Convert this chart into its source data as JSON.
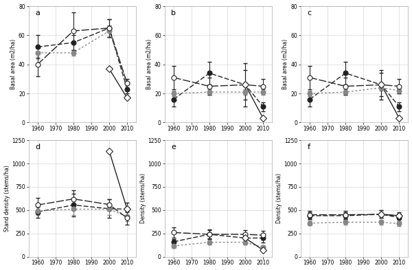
{
  "subplots": [
    {
      "label": "a",
      "ylabel": "Basal area (m2/ha)",
      "ylim": [
        0,
        80
      ],
      "yticks": [
        0,
        20,
        40,
        60,
        80
      ],
      "series": [
        {
          "name": "black_filled",
          "x": [
            1960,
            1980,
            2000,
            2010
          ],
          "y": [
            52,
            55,
            65,
            23
          ],
          "yerr_lo": [
            8,
            5,
            6,
            3
          ],
          "yerr_hi": [
            8,
            5,
            6,
            3
          ],
          "color": "#222222",
          "marker": "o",
          "mfc": "#222222",
          "dashes": [
            5,
            2
          ]
        },
        {
          "name": "gray_filled",
          "x": [
            1960,
            1980,
            2000,
            2010
          ],
          "y": [
            48,
            48,
            63,
            27
          ],
          "yerr_lo": [
            3,
            2,
            4,
            3
          ],
          "yerr_hi": [
            3,
            2,
            4,
            3
          ],
          "color": "#888888",
          "marker": "o",
          "mfc": "#888888",
          "dashes": [
            2,
            2
          ]
        },
        {
          "name": "black_open",
          "x": [
            1960,
            1980,
            2000,
            2010
          ],
          "y": [
            40,
            63,
            65,
            27
          ],
          "yerr_lo": [
            8,
            13,
            6,
            3
          ],
          "yerr_hi": [
            8,
            13,
            6,
            3
          ],
          "color": "#222222",
          "marker": "o",
          "mfc": "white",
          "dashes": [
            8,
            2
          ]
        },
        {
          "name": "diamond_open",
          "x": [
            2000,
            2010
          ],
          "y": [
            37,
            17
          ],
          "yerr_lo": [
            0,
            0
          ],
          "yerr_hi": [
            0,
            0
          ],
          "color": "#222222",
          "marker": "D",
          "mfc": "white",
          "dashes": [
            1,
            0
          ]
        }
      ]
    },
    {
      "label": "b",
      "ylabel": "Basal area (m2/ha)",
      "ylim": [
        0,
        80
      ],
      "yticks": [
        0,
        20,
        40,
        60,
        80
      ],
      "series": [
        {
          "name": "black_filled",
          "x": [
            1960,
            1980,
            2000,
            2010
          ],
          "y": [
            16,
            34,
            26,
            11
          ],
          "yerr_lo": [
            5,
            8,
            10,
            3
          ],
          "yerr_hi": [
            5,
            8,
            10,
            3
          ],
          "color": "#222222",
          "marker": "o",
          "mfc": "#222222",
          "dashes": [
            5,
            2
          ]
        },
        {
          "name": "gray_filled",
          "x": [
            1960,
            1980,
            2000,
            2010
          ],
          "y": [
            20,
            21,
            21,
            21
          ],
          "yerr_lo": [
            2,
            2,
            2,
            2
          ],
          "yerr_hi": [
            2,
            2,
            2,
            2
          ],
          "color": "#888888",
          "marker": "o",
          "mfc": "#888888",
          "dashes": [
            2,
            2
          ]
        },
        {
          "name": "black_open",
          "x": [
            1960,
            1980,
            2000,
            2010
          ],
          "y": [
            31,
            25,
            26,
            25
          ],
          "yerr_lo": [
            8,
            6,
            15,
            5
          ],
          "yerr_hi": [
            8,
            6,
            15,
            5
          ],
          "color": "#222222",
          "marker": "o",
          "mfc": "white",
          "dashes": [
            8,
            2
          ]
        },
        {
          "name": "diamond_open",
          "x": [
            2000,
            2010
          ],
          "y": [
            26,
            3
          ],
          "yerr_lo": [
            0,
            0
          ],
          "yerr_hi": [
            0,
            0
          ],
          "color": "#222222",
          "marker": "D",
          "mfc": "white",
          "dashes": [
            1,
            0
          ]
        }
      ]
    },
    {
      "label": "c",
      "ylabel": "Basal area (m2/ha)",
      "ylim": [
        0,
        80
      ],
      "yticks": [
        0,
        20,
        40,
        60,
        80
      ],
      "series": [
        {
          "name": "black_filled",
          "x": [
            1960,
            1980,
            2000,
            2010
          ],
          "y": [
            16,
            34,
            26,
            11
          ],
          "yerr_lo": [
            5,
            8,
            10,
            3
          ],
          "yerr_hi": [
            5,
            8,
            10,
            3
          ],
          "color": "#222222",
          "marker": "o",
          "mfc": "#222222",
          "dashes": [
            5,
            2
          ]
        },
        {
          "name": "gray_filled",
          "x": [
            1960,
            1980,
            2000,
            2010
          ],
          "y": [
            20,
            21,
            24,
            22
          ],
          "yerr_lo": [
            2,
            2,
            2,
            2
          ],
          "yerr_hi": [
            2,
            2,
            2,
            2
          ],
          "color": "#888888",
          "marker": "o",
          "mfc": "#888888",
          "dashes": [
            2,
            2
          ]
        },
        {
          "name": "black_open",
          "x": [
            1960,
            1980,
            2000,
            2010
          ],
          "y": [
            31,
            25,
            26,
            25
          ],
          "yerr_lo": [
            8,
            6,
            8,
            5
          ],
          "yerr_hi": [
            8,
            6,
            8,
            5
          ],
          "color": "#222222",
          "marker": "o",
          "mfc": "white",
          "dashes": [
            8,
            2
          ]
        },
        {
          "name": "diamond_open",
          "x": [
            2000,
            2010
          ],
          "y": [
            26,
            3
          ],
          "yerr_lo": [
            0,
            0
          ],
          "yerr_hi": [
            0,
            0
          ],
          "color": "#222222",
          "marker": "D",
          "mfc": "white",
          "dashes": [
            1,
            0
          ]
        }
      ]
    },
    {
      "label": "d",
      "ylabel": "Stand density (stems/ha)",
      "ylim": [
        0,
        1250
      ],
      "yticks": [
        0,
        250,
        500,
        750,
        1000,
        1250
      ],
      "series": [
        {
          "name": "black_filled",
          "x": [
            1960,
            1980,
            2000,
            2010
          ],
          "y": [
            480,
            555,
            515,
            510
          ],
          "yerr_lo": [
            60,
            120,
            100,
            70
          ],
          "yerr_hi": [
            60,
            120,
            100,
            70
          ],
          "color": "#222222",
          "marker": "o",
          "mfc": "#222222",
          "dashes": [
            5,
            2
          ]
        },
        {
          "name": "gray_filled",
          "x": [
            1960,
            1980,
            2000,
            2010
          ],
          "y": [
            490,
            510,
            510,
            430
          ],
          "yerr_lo": [
            40,
            60,
            60,
            50
          ],
          "yerr_hi": [
            40,
            60,
            60,
            50
          ],
          "color": "#888888",
          "marker": "o",
          "mfc": "#888888",
          "dashes": [
            2,
            2
          ]
        },
        {
          "name": "black_open",
          "x": [
            1960,
            1980,
            2000,
            2010
          ],
          "y": [
            555,
            620,
            560,
            415
          ],
          "yerr_lo": [
            80,
            90,
            60,
            70
          ],
          "yerr_hi": [
            80,
            90,
            60,
            70
          ],
          "color": "#222222",
          "marker": "o",
          "mfc": "white",
          "dashes": [
            8,
            2
          ]
        },
        {
          "name": "diamond_open",
          "x": [
            2000,
            2010
          ],
          "y": [
            1135,
            510
          ],
          "yerr_lo": [
            0,
            0
          ],
          "yerr_hi": [
            0,
            0
          ],
          "color": "#222222",
          "marker": "D",
          "mfc": "white",
          "dashes": [
            1,
            0
          ]
        }
      ]
    },
    {
      "label": "e",
      "ylabel": "Density (stems/ha)",
      "ylim": [
        0,
        1250
      ],
      "yticks": [
        0,
        250,
        500,
        750,
        1000,
        1250
      ],
      "series": [
        {
          "name": "black_filled",
          "x": [
            1960,
            1980,
            2000,
            2010
          ],
          "y": [
            160,
            240,
            200,
            200
          ],
          "yerr_lo": [
            30,
            50,
            50,
            50
          ],
          "yerr_hi": [
            30,
            50,
            50,
            50
          ],
          "color": "#222222",
          "marker": "o",
          "mfc": "#222222",
          "dashes": [
            5,
            2
          ]
        },
        {
          "name": "gray_filled",
          "x": [
            1960,
            1980,
            2000,
            2010
          ],
          "y": [
            115,
            155,
            155,
            100
          ],
          "yerr_lo": [
            20,
            25,
            25,
            20
          ],
          "yerr_hi": [
            20,
            25,
            25,
            20
          ],
          "color": "#888888",
          "marker": "o",
          "mfc": "#888888",
          "dashes": [
            2,
            2
          ]
        },
        {
          "name": "black_open",
          "x": [
            1960,
            1980,
            2000,
            2010
          ],
          "y": [
            260,
            240,
            240,
            230
          ],
          "yerr_lo": [
            55,
            45,
            45,
            45
          ],
          "yerr_hi": [
            55,
            45,
            45,
            45
          ],
          "color": "#222222",
          "marker": "o",
          "mfc": "white",
          "dashes": [
            8,
            2
          ]
        },
        {
          "name": "diamond_open",
          "x": [
            2000,
            2010
          ],
          "y": [
            200,
            70
          ],
          "yerr_lo": [
            0,
            0
          ],
          "yerr_hi": [
            0,
            0
          ],
          "color": "#222222",
          "marker": "D",
          "mfc": "white",
          "dashes": [
            1,
            0
          ]
        }
      ]
    },
    {
      "label": "f",
      "ylabel": "Density (stems/ha)",
      "ylim": [
        0,
        1250
      ],
      "yticks": [
        0,
        250,
        500,
        750,
        1000,
        1250
      ],
      "series": [
        {
          "name": "black_filled",
          "x": [
            1960,
            1980,
            2000,
            2010
          ],
          "y": [
            440,
            440,
            455,
            420
          ],
          "yerr_lo": [
            40,
            40,
            40,
            40
          ],
          "yerr_hi": [
            40,
            40,
            40,
            40
          ],
          "color": "#222222",
          "marker": "o",
          "mfc": "#222222",
          "dashes": [
            5,
            2
          ]
        },
        {
          "name": "gray_filled",
          "x": [
            1960,
            1980,
            2000,
            2010
          ],
          "y": [
            360,
            370,
            370,
            355
          ],
          "yerr_lo": [
            25,
            25,
            25,
            25
          ],
          "yerr_hi": [
            25,
            25,
            25,
            25
          ],
          "color": "#888888",
          "marker": "o",
          "mfc": "#888888",
          "dashes": [
            2,
            2
          ]
        },
        {
          "name": "black_open",
          "x": [
            1960,
            1980,
            2000,
            2010
          ],
          "y": [
            450,
            450,
            455,
            440
          ],
          "yerr_lo": [
            40,
            40,
            40,
            40
          ],
          "yerr_hi": [
            40,
            40,
            40,
            40
          ],
          "color": "#222222",
          "marker": "o",
          "mfc": "white",
          "dashes": [
            8,
            2
          ]
        },
        {
          "name": "diamond_open",
          "x": [
            2000,
            2010
          ],
          "y": [
            455,
            440
          ],
          "yerr_lo": [
            0,
            0
          ],
          "yerr_hi": [
            0,
            0
          ],
          "color": "#222222",
          "marker": "D",
          "mfc": "white",
          "dashes": [
            1,
            0
          ]
        }
      ]
    }
  ],
  "xticks": [
    1960,
    1970,
    1980,
    1990,
    2000,
    2010
  ],
  "xlim": [
    1955,
    2015
  ],
  "background_color": "#ffffff",
  "grid_color": "#dddddd",
  "markersize": 5,
  "linewidth": 1.0,
  "capsize": 2,
  "elinewidth": 0.8
}
